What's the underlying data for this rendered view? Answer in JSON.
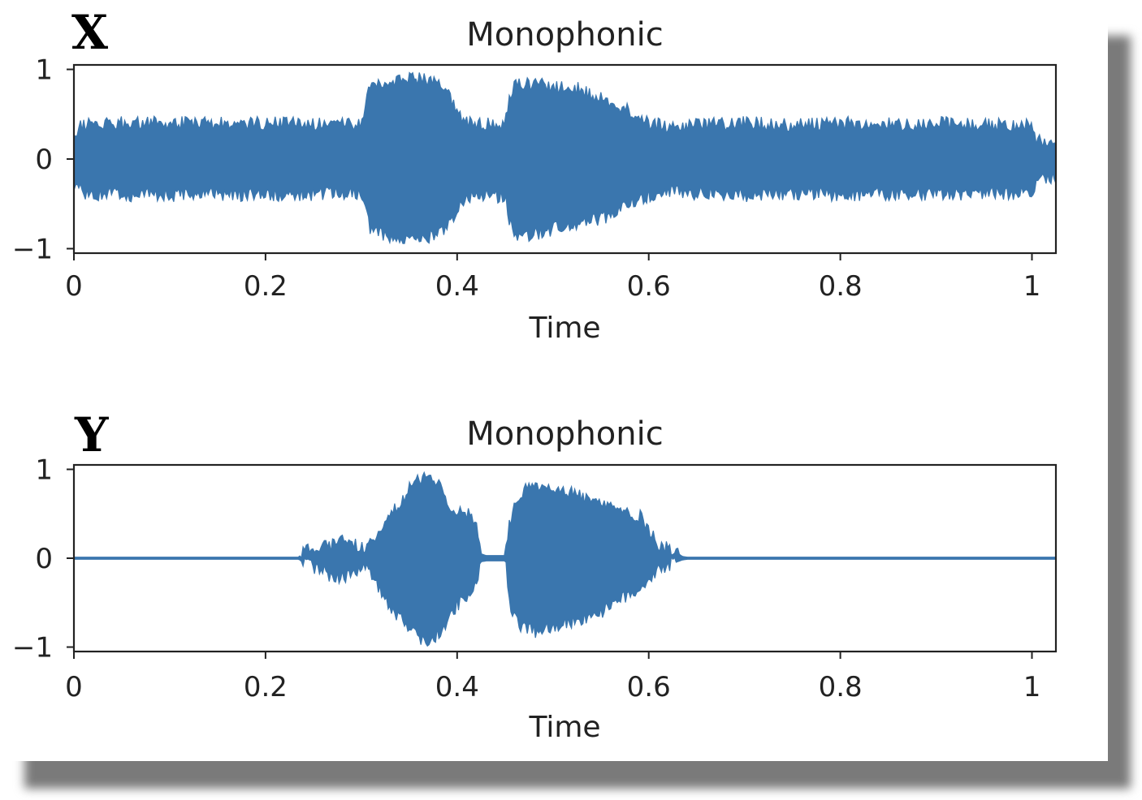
{
  "chart_data": [
    {
      "panel_label": "X",
      "type": "line",
      "title": "Monophonic",
      "xlabel": "Time",
      "ylabel": "",
      "xlim": [
        0,
        1.025
      ],
      "ylim": [
        -1.05,
        1.05
      ],
      "xticks": [
        0,
        0.2,
        0.4,
        0.6,
        0.8,
        1
      ],
      "xtick_labels": [
        "0",
        "0.2",
        "0.4",
        "0.6",
        "0.8",
        "1"
      ],
      "yticks": [
        1,
        0,
        -1
      ],
      "ytick_labels": [
        "1",
        "0",
        "−1"
      ],
      "grid": false,
      "series": [
        {
          "color": "#3a76ae",
          "envelope": {
            "x": [
              0,
              0.01,
              0.05,
              0.1,
              0.15,
              0.2,
              0.25,
              0.29,
              0.3,
              0.305,
              0.31,
              0.33,
              0.35,
              0.37,
              0.39,
              0.4,
              0.41,
              0.43,
              0.45,
              0.455,
              0.46,
              0.48,
              0.5,
              0.52,
              0.54,
              0.56,
              0.58,
              0.6,
              0.62,
              0.65,
              0.7,
              0.75,
              0.8,
              0.85,
              0.9,
              0.95,
              1.0,
              1.005,
              1.025
            ],
            "upper": [
              0.3,
              0.38,
              0.4,
              0.4,
              0.39,
              0.4,
              0.39,
              0.38,
              0.4,
              0.6,
              0.88,
              0.85,
              0.9,
              0.88,
              0.75,
              0.55,
              0.4,
              0.38,
              0.4,
              0.7,
              0.85,
              0.84,
              0.8,
              0.8,
              0.73,
              0.65,
              0.55,
              0.4,
              0.36,
              0.38,
              0.4,
              0.38,
              0.4,
              0.39,
              0.4,
              0.38,
              0.38,
              0.22,
              0.2
            ],
            "lower": [
              -0.3,
              -0.38,
              -0.4,
              -0.4,
              -0.39,
              -0.4,
              -0.39,
              -0.38,
              -0.4,
              -0.55,
              -0.82,
              -0.86,
              -0.9,
              -0.88,
              -0.75,
              -0.55,
              -0.42,
              -0.4,
              -0.42,
              -0.7,
              -0.88,
              -0.84,
              -0.78,
              -0.74,
              -0.7,
              -0.62,
              -0.52,
              -0.4,
              -0.36,
              -0.38,
              -0.4,
              -0.38,
              -0.4,
              -0.39,
              -0.4,
              -0.38,
              -0.38,
              -0.22,
              -0.2
            ]
          }
        }
      ]
    },
    {
      "panel_label": "Y",
      "type": "line",
      "title": "Monophonic",
      "xlabel": "Time",
      "ylabel": "",
      "xlim": [
        0,
        1.025
      ],
      "ylim": [
        -1.05,
        1.05
      ],
      "xticks": [
        0,
        0.2,
        0.4,
        0.6,
        0.8,
        1
      ],
      "xtick_labels": [
        "0",
        "0.2",
        "0.4",
        "0.6",
        "0.8",
        "1"
      ],
      "yticks": [
        1,
        0,
        -1
      ],
      "ytick_labels": [
        "1",
        "0",
        "−1"
      ],
      "grid": false,
      "series": [
        {
          "color": "#3a76ae",
          "envelope": {
            "x": [
              0,
              0.235,
              0.24,
              0.26,
              0.27,
              0.28,
              0.29,
              0.3,
              0.31,
              0.32,
              0.33,
              0.34,
              0.35,
              0.36,
              0.37,
              0.38,
              0.39,
              0.4,
              0.41,
              0.42,
              0.425,
              0.43,
              0.45,
              0.455,
              0.46,
              0.47,
              0.48,
              0.5,
              0.52,
              0.54,
              0.56,
              0.57,
              0.58,
              0.59,
              0.6,
              0.61,
              0.62,
              0.63,
              0.635,
              0.64,
              1.025
            ],
            "upper": [
              0.012,
              0.012,
              0.1,
              0.14,
              0.15,
              0.2,
              0.19,
              0.1,
              0.18,
              0.34,
              0.48,
              0.6,
              0.78,
              0.9,
              0.92,
              0.85,
              0.62,
              0.55,
              0.5,
              0.4,
              0.05,
              0.03,
              0.03,
              0.4,
              0.6,
              0.76,
              0.8,
              0.8,
              0.74,
              0.65,
              0.58,
              0.55,
              0.5,
              0.48,
              0.34,
              0.16,
              0.12,
              0.06,
              0.02,
              0.012,
              0.012
            ],
            "lower": [
              -0.012,
              -0.012,
              -0.06,
              -0.15,
              -0.2,
              -0.22,
              -0.2,
              -0.1,
              -0.16,
              -0.36,
              -0.55,
              -0.68,
              -0.8,
              -0.9,
              -0.92,
              -0.86,
              -0.7,
              -0.52,
              -0.42,
              -0.3,
              -0.04,
              -0.03,
              -0.03,
              -0.5,
              -0.68,
              -0.8,
              -0.82,
              -0.78,
              -0.72,
              -0.64,
              -0.56,
              -0.48,
              -0.4,
              -0.35,
              -0.24,
              -0.12,
              -0.08,
              -0.04,
              -0.02,
              -0.012,
              -0.012
            ]
          }
        }
      ]
    }
  ]
}
